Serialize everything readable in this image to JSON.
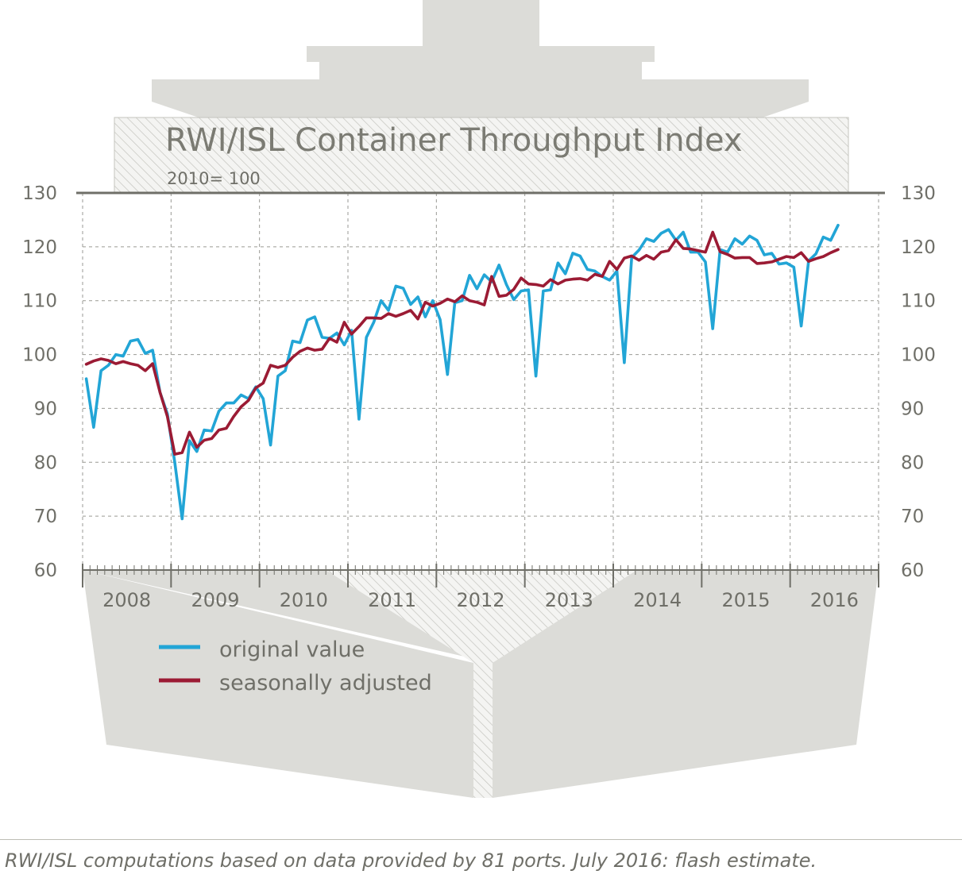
{
  "title": "RWI/ISL Container Throughput Index",
  "subtitle": "2010= 100",
  "source_note": "RWI/ISL computations based on data provided by 81 ports. July 2016: flash estimate.",
  "colors": {
    "original": "#22a5d6",
    "adjusted": "#9b1b34",
    "ship": "#dcdcd8",
    "text": "#6f6f68"
  },
  "chart_data": {
    "type": "line",
    "title": "RWI/ISL Container Throughput Index",
    "subtitle": "2010= 100",
    "ylim": [
      60,
      130
    ],
    "y_ticks": [
      60,
      70,
      80,
      90,
      100,
      110,
      120,
      130
    ],
    "y_tick_labels": [
      "60",
      "70",
      "80",
      "90",
      "100",
      "110",
      "120",
      "130"
    ],
    "x_tick_labels": [
      "2008",
      "2009",
      "2010",
      "2011",
      "2012",
      "2013",
      "2014",
      "2015",
      "2016"
    ],
    "x_start": "2008-01",
    "grid": true,
    "legend_position": "bottom-left",
    "series": [
      {
        "name": "original value",
        "values": [
          95.5,
          86.5,
          97,
          98,
          100,
          99.7,
          102.5,
          102.8,
          100.2,
          100.8,
          93,
          89,
          80,
          69.5,
          84,
          82,
          86,
          85.8,
          89.5,
          91,
          91,
          92.5,
          91.8,
          94,
          91.8,
          83.2,
          96,
          97,
          102.5,
          102.2,
          106.4,
          107,
          103.2,
          103,
          104,
          101.8,
          104.5,
          88,
          103.2,
          106,
          110,
          108.2,
          112.7,
          112.3,
          109.3,
          110.7,
          107,
          110,
          106.5,
          96.3,
          109.6,
          110,
          114.7,
          112.2,
          114.8,
          113.5,
          116.6,
          113,
          110.2,
          111.8,
          112,
          96,
          111.8,
          112,
          117,
          115,
          118.8,
          118.3,
          115.8,
          115.5,
          114.5,
          113.8,
          115.5,
          98.5,
          118,
          119.4,
          121.5,
          121,
          122.5,
          123.2,
          121.2,
          122.7,
          119,
          119,
          117.2,
          104.8,
          119.5,
          119,
          121.5,
          120.5,
          122,
          121.2,
          118.5,
          118.8,
          116.8,
          117,
          116.2,
          105.3,
          117.4,
          118.7,
          121.8,
          121.2,
          124
        ]
      },
      {
        "name": "seasonally adjusted",
        "values": [
          98.2,
          98.8,
          99.2,
          98.9,
          98.3,
          98.7,
          98.3,
          98,
          97,
          98.3,
          93,
          88.5,
          81.5,
          81.8,
          85.6,
          82.8,
          84.1,
          84.4,
          86,
          86.3,
          88.5,
          90.3,
          91.5,
          93.8,
          94.7,
          98,
          97.6,
          98,
          99.5,
          100.6,
          101.2,
          100.8,
          101,
          103,
          102.3,
          106,
          103.8,
          105.2,
          106.8,
          106.8,
          106.7,
          107.6,
          107.1,
          107.6,
          108.2,
          106.6,
          109.7,
          109,
          109.5,
          110.3,
          109.8,
          110.9,
          110,
          109.7,
          109.2,
          114.5,
          110.8,
          111,
          112.1,
          114.2,
          113.1,
          113,
          112.7,
          113.9,
          113.1,
          113.8,
          114,
          114.1,
          113.8,
          114.9,
          114.5,
          117.3,
          115.8,
          117.9,
          118.3,
          117.5,
          118.4,
          117.7,
          119,
          119.3,
          121.3,
          119.7,
          119.6,
          119.3,
          119,
          122.7,
          119.1,
          118.6,
          117.9,
          118,
          118,
          116.9,
          117,
          117.2,
          117.7,
          118.2,
          118,
          118.9,
          117.3,
          117.8,
          118.2,
          118.9,
          119.5
        ]
      }
    ]
  }
}
